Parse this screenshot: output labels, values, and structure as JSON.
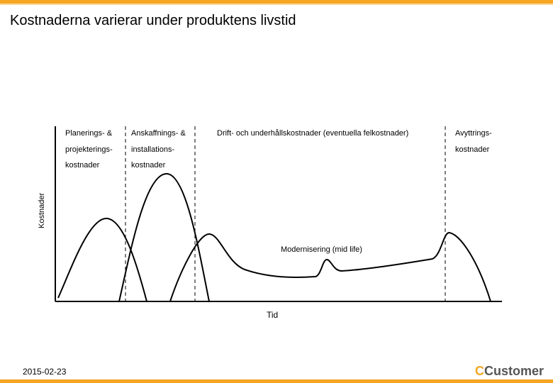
{
  "title": "Kostnaderna varierar under produktens livstid",
  "axis": {
    "y_label": "Kostnader",
    "x_label": "Tid"
  },
  "phases": {
    "p1": [
      "Planerings- &",
      "projekterings-",
      "kostnader"
    ],
    "p2": [
      "Anskaffnings- &",
      "installations-",
      "kostnader"
    ],
    "p3": [
      "Drift- och underhållskostnader (eventuella felkostnader)"
    ],
    "p4": [
      "Avyttrings-",
      "kostnader"
    ]
  },
  "annotation": "Modernisering (mid life)",
  "footer": {
    "date": "2015-02-23",
    "logo_c": "C",
    "logo_text": "Customer"
  },
  "colors": {
    "accent": "#f5a623",
    "curve": "#000000",
    "logo_text": "#555555"
  }
}
